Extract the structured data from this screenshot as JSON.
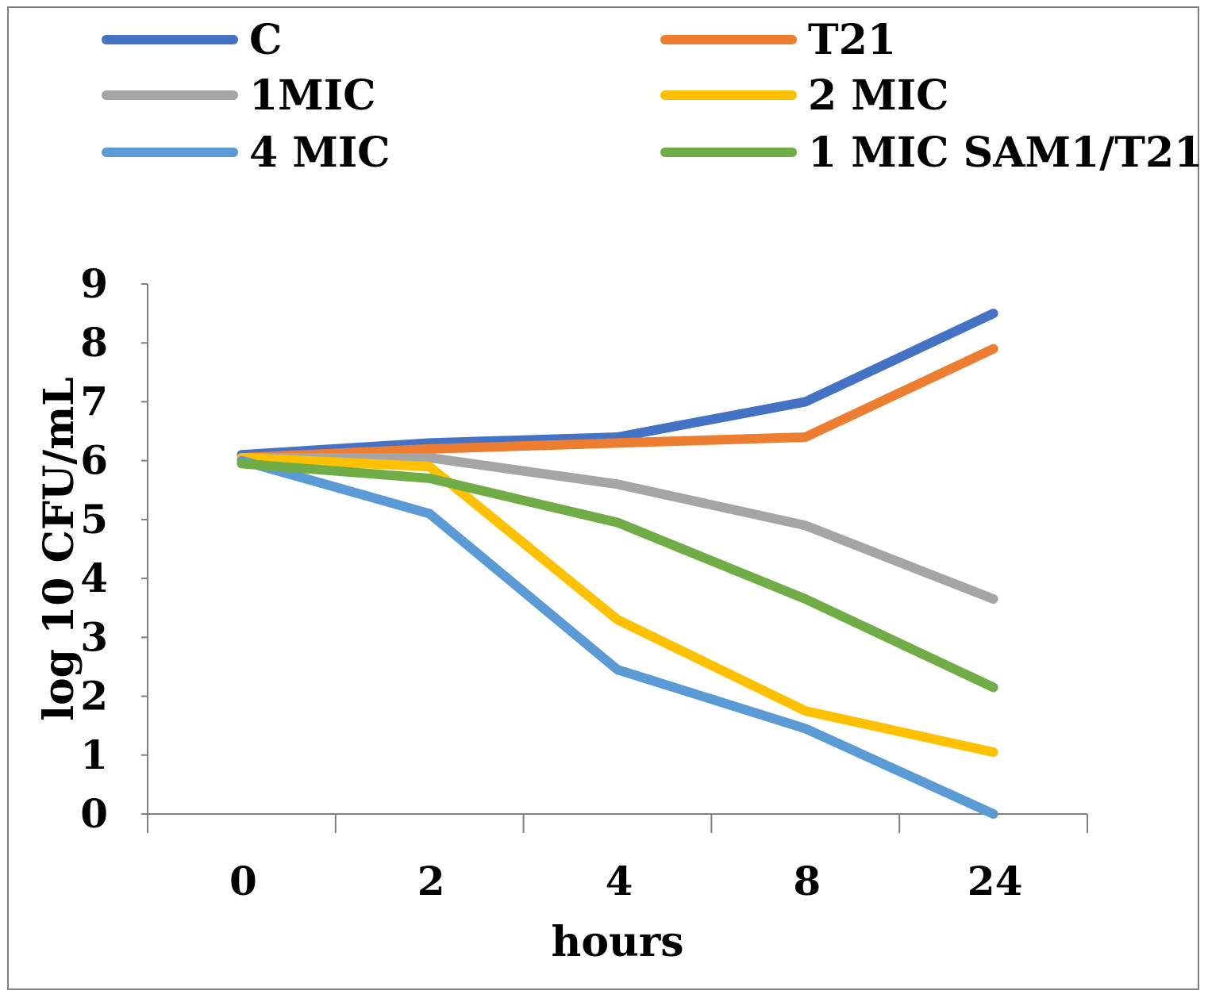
{
  "chart_data": {
    "type": "line",
    "title": "",
    "xlabel": "hours",
    "ylabel": "log 10 CFU/mL",
    "categories": [
      "0",
      "2",
      "4",
      "8",
      "24"
    ],
    "ylim": [
      0,
      9
    ],
    "yticks": [
      "0",
      "1",
      "2",
      "3",
      "4",
      "5",
      "6",
      "7",
      "8",
      "9"
    ],
    "grid": false,
    "legend_position": "top",
    "series": [
      {
        "name": "C",
        "color": "#4472C4",
        "values": [
          6.1,
          6.3,
          6.4,
          7.0,
          8.5
        ]
      },
      {
        "name": "T21",
        "color": "#ED7D31",
        "values": [
          6.05,
          6.2,
          6.3,
          6.4,
          7.9
        ]
      },
      {
        "name": "1MIC",
        "color": "#A5A5A5",
        "values": [
          6.05,
          6.05,
          5.6,
          4.9,
          3.65
        ]
      },
      {
        "name": "2 MIC",
        "color": "#FFC000",
        "values": [
          6.05,
          5.9,
          3.3,
          1.75,
          1.05
        ]
      },
      {
        "name": "4 MIC",
        "color": "#5B9BD5",
        "values": [
          6.0,
          5.1,
          2.45,
          1.45,
          0.0
        ]
      },
      {
        "name": "1 MIC SAM1/T21",
        "color": "#70AD47",
        "values": [
          5.95,
          5.7,
          4.95,
          3.65,
          2.15
        ]
      }
    ]
  }
}
